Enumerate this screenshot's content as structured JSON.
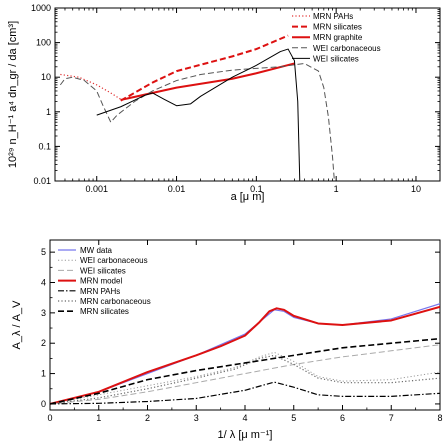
{
  "chart_data": [
    {
      "type": "line",
      "xscale": "log",
      "yscale": "log",
      "xlim": [
        0.0003,
        20
      ],
      "ylim": [
        0.01,
        1000
      ],
      "xlabel": "a [μ m]",
      "ylabel": "10²⁹ n_H⁻¹ a⁴ dn_gr / da [cm³]",
      "grid": false,
      "legend": "top-right",
      "xticks": [
        0.001,
        0.01,
        0.1,
        1,
        10
      ],
      "xtick_labels": [
        "0.001",
        "0.01",
        "0.1",
        "1",
        "10"
      ],
      "yticks": [
        0.01,
        0.1,
        1,
        10,
        100,
        1000
      ],
      "ytick_labels": [
        "0.01",
        "0.1",
        "1",
        "10",
        "100",
        "1000"
      ],
      "series": [
        {
          "name": "MRN PAHs",
          "color": "#e03030",
          "style": "dotted",
          "width": 1.2,
          "points": [
            [
              0.00035,
              12
            ],
            [
              0.0006,
              10
            ],
            [
              0.001,
              6
            ],
            [
              0.0015,
              3.5
            ],
            [
              0.002,
              2.3
            ]
          ]
        },
        {
          "name": "MRN silicates",
          "color": "#dd1111",
          "style": "dashed",
          "width": 2,
          "points": [
            [
              0.002,
              2.1
            ],
            [
              0.005,
              7
            ],
            [
              0.01,
              15
            ],
            [
              0.05,
              40
            ],
            [
              0.1,
              65
            ],
            [
              0.25,
              160
            ]
          ]
        },
        {
          "name": "MRN graphite",
          "color": "#dd1111",
          "style": "solid",
          "width": 2,
          "points": [
            [
              0.002,
              2.2
            ],
            [
              0.01,
              5
            ],
            [
              0.05,
              9
            ],
            [
              0.1,
              13
            ],
            [
              0.3,
              25
            ]
          ]
        },
        {
          "name": "WEI carbonaceous",
          "color": "#555555",
          "style": "dashed",
          "width": 1,
          "points": [
            [
              0.00035,
              6
            ],
            [
              0.0004,
              9
            ],
            [
              0.0005,
              10
            ],
            [
              0.0007,
              8
            ],
            [
              0.001,
              4
            ],
            [
              0.0012,
              1.5
            ],
            [
              0.0015,
              0.5
            ],
            [
              0.0018,
              0.8
            ],
            [
              0.003,
              2
            ],
            [
              0.005,
              4
            ],
            [
              0.01,
              8
            ],
            [
              0.02,
              12
            ],
            [
              0.05,
              16
            ],
            [
              0.1,
              18
            ],
            [
              0.2,
              20
            ],
            [
              0.4,
              25
            ],
            [
              0.6,
              15
            ],
            [
              0.7,
              5
            ],
            [
              0.8,
              0.7
            ],
            [
              0.9,
              0.05
            ],
            [
              0.95,
              0.01
            ]
          ]
        },
        {
          "name": "WEI silicates",
          "color": "#000000",
          "style": "solid",
          "width": 1,
          "points": [
            [
              0.001,
              0.8
            ],
            [
              0.002,
              1.4
            ],
            [
              0.004,
              3
            ],
            [
              0.005,
              3.5
            ],
            [
              0.007,
              2.3
            ],
            [
              0.01,
              1.5
            ],
            [
              0.015,
              1.7
            ],
            [
              0.02,
              2.8
            ],
            [
              0.05,
              10
            ],
            [
              0.1,
              22
            ],
            [
              0.2,
              55
            ],
            [
              0.25,
              65
            ],
            [
              0.3,
              30
            ],
            [
              0.33,
              2
            ],
            [
              0.35,
              0.01
            ]
          ]
        }
      ]
    },
    {
      "type": "line",
      "xlim": [
        0,
        8
      ],
      "ylim": [
        -0.2,
        5.4
      ],
      "xlabel": "1/ λ [μ m⁻¹]",
      "ylabel": "A_λ / A_V",
      "grid": false,
      "legend": "top-left",
      "xticks": [
        0,
        1,
        2,
        3,
        4,
        5,
        6,
        7,
        8
      ],
      "xtick_labels": [
        "0",
        "1",
        "2",
        "3",
        "4",
        "5",
        "6",
        "7",
        "8"
      ],
      "yticks": [
        0,
        1,
        2,
        3,
        4,
        5
      ],
      "ytick_labels": [
        "0",
        "1",
        "2",
        "3",
        "4",
        "5"
      ],
      "series": [
        {
          "name": "MW data",
          "color": "#7777ee",
          "style": "solid",
          "width": 1.2,
          "points": [
            [
              0,
              0
            ],
            [
              1,
              0.4
            ],
            [
              2,
              1.0
            ],
            [
              3,
              1.6
            ],
            [
              3.5,
              1.95
            ],
            [
              4,
              2.3
            ],
            [
              4.3,
              2.7
            ],
            [
              4.6,
              3.1
            ],
            [
              4.8,
              3.05
            ],
            [
              5,
              2.85
            ],
            [
              5.5,
              2.65
            ],
            [
              6,
              2.6
            ],
            [
              7,
              2.8
            ],
            [
              8,
              3.3
            ]
          ]
        },
        {
          "name": "WEI carbonaceous",
          "color": "#999999",
          "style": "dotted",
          "width": 1,
          "points": [
            [
              0,
              0
            ],
            [
              1,
              0.3
            ],
            [
              2,
              0.6
            ],
            [
              3,
              0.9
            ],
            [
              3.8,
              1.2
            ],
            [
              4.3,
              1.55
            ],
            [
              4.6,
              1.7
            ],
            [
              5,
              1.4
            ],
            [
              5.5,
              0.9
            ],
            [
              6,
              0.75
            ],
            [
              7,
              0.8
            ],
            [
              8,
              1.05
            ]
          ]
        },
        {
          "name": "WEI silicates",
          "color": "#aaaaaa",
          "style": "dashed",
          "width": 1,
          "points": [
            [
              0,
              0
            ],
            [
              1,
              0.15
            ],
            [
              2,
              0.4
            ],
            [
              3,
              0.7
            ],
            [
              4,
              1.0
            ],
            [
              5,
              1.3
            ],
            [
              6,
              1.55
            ],
            [
              7,
              1.75
            ],
            [
              8,
              1.95
            ]
          ]
        },
        {
          "name": "MRN model",
          "color": "#dd1111",
          "style": "solid",
          "width": 2,
          "points": [
            [
              0,
              0
            ],
            [
              1,
              0.4
            ],
            [
              2,
              1.05
            ],
            [
              3,
              1.6
            ],
            [
              3.5,
              1.9
            ],
            [
              4,
              2.25
            ],
            [
              4.3,
              2.7
            ],
            [
              4.5,
              3.05
            ],
            [
              4.65,
              3.15
            ],
            [
              4.8,
              3.1
            ],
            [
              5,
              2.9
            ],
            [
              5.5,
              2.65
            ],
            [
              6,
              2.6
            ],
            [
              7,
              2.75
            ],
            [
              8,
              3.2
            ]
          ]
        },
        {
          "name": "MRN PAHs",
          "color": "#000000",
          "style": "dashdot",
          "width": 1.2,
          "points": [
            [
              0,
              0
            ],
            [
              1,
              0.02
            ],
            [
              2,
              0.08
            ],
            [
              3,
              0.18
            ],
            [
              4,
              0.45
            ],
            [
              4.6,
              0.72
            ],
            [
              5,
              0.55
            ],
            [
              5.5,
              0.3
            ],
            [
              6,
              0.25
            ],
            [
              7,
              0.25
            ],
            [
              8,
              0.35
            ]
          ]
        },
        {
          "name": "MRN carbonaceous",
          "color": "#666666",
          "style": "dotted",
          "width": 1.2,
          "points": [
            [
              0,
              0
            ],
            [
              1,
              0.2
            ],
            [
              2,
              0.5
            ],
            [
              3,
              0.85
            ],
            [
              3.8,
              1.15
            ],
            [
              4.3,
              1.5
            ],
            [
              4.6,
              1.6
            ],
            [
              5,
              1.3
            ],
            [
              5.5,
              0.85
            ],
            [
              6,
              0.7
            ],
            [
              7,
              0.7
            ],
            [
              8,
              0.85
            ]
          ]
        },
        {
          "name": "MRN silicates",
          "color": "#000000",
          "style": "dashed",
          "width": 1.6,
          "points": [
            [
              0,
              0
            ],
            [
              1,
              0.35
            ],
            [
              2,
              0.8
            ],
            [
              3,
              1.1
            ],
            [
              4,
              1.35
            ],
            [
              5,
              1.6
            ],
            [
              6,
              1.85
            ],
            [
              7,
              2.0
            ],
            [
              8,
              2.15
            ]
          ]
        }
      ]
    }
  ]
}
